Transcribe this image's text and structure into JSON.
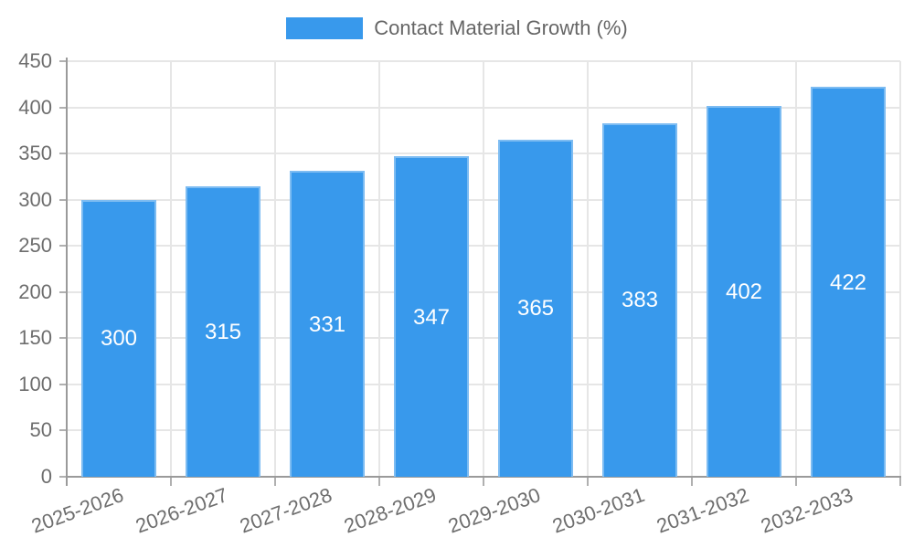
{
  "chart_data": {
    "type": "bar",
    "title": "",
    "legend": {
      "label": "Contact Material Growth (%)",
      "position": "top"
    },
    "categories": [
      "2025-2026",
      "2026-2027",
      "2027-2028",
      "2028-2029",
      "2029-2030",
      "2030-2031",
      "2031-2032",
      "2032-2033"
    ],
    "series": [
      {
        "name": "Contact Material Growth (%)",
        "values": [
          300,
          315,
          331,
          347,
          365,
          383,
          402,
          422
        ]
      }
    ],
    "bar_value_labels": [
      "300",
      "315",
      "331",
      "347",
      "365",
      "383",
      "402",
      "422"
    ],
    "xlabel": "",
    "ylabel": "",
    "ylim": [
      0,
      450
    ],
    "ytick_step": 50,
    "yticks": [
      "0",
      "50",
      "100",
      "150",
      "200",
      "250",
      "300",
      "350",
      "400",
      "450"
    ],
    "grid": true,
    "x_label_rotation_deg": -20,
    "colors": {
      "bar": "#3899ec",
      "bar_value_label": "#ffffff",
      "axis": "#9a9a9a",
      "tick_mark": "#b0b0b0",
      "grid": "#e6e6e6",
      "tick_text": "#6e6e6e",
      "legend_text": "#666666"
    }
  }
}
